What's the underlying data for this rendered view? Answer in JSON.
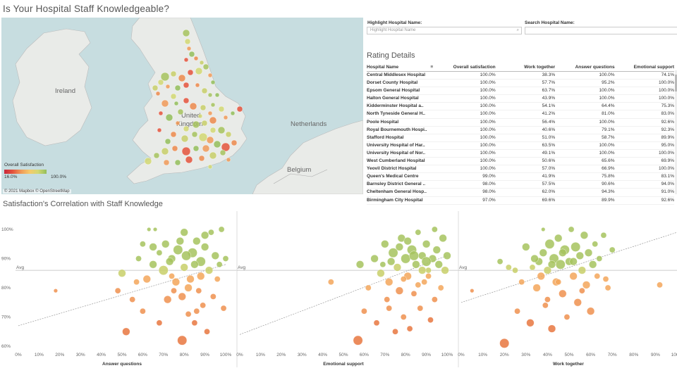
{
  "title": "Is Your Hospital Staff Knowledgeable?",
  "map": {
    "labels": {
      "ireland": "Ireland",
      "uk_1": "United",
      "uk_2": "Kingdom",
      "netherlands": "Netherlands",
      "belgium": "Belgium"
    },
    "legend": {
      "title": "Overall Satisfaction",
      "min": "16.0%",
      "max": "100.0%"
    },
    "attribution": "© 2021 Mapbox © OpenStreetMap"
  },
  "filters": {
    "highlight": {
      "label": "Highlight Hospital Name:",
      "placeholder": "Highlight Hospital Name"
    },
    "search": {
      "label": "Search Hospital Name:",
      "placeholder": ""
    }
  },
  "rating": {
    "title": "Rating Details",
    "headers": [
      "Hospital Name",
      "Overall satisfaction",
      "Work together",
      "Answer questions",
      "Emotional support"
    ],
    "rows": [
      [
        "Central Middlesex Hospital",
        "100.0%",
        "38.3%",
        "100.0%",
        "74.1%"
      ],
      [
        "Dorset County Hospital",
        "100.0%",
        "57.7%",
        "95.2%",
        "100.0%"
      ],
      [
        "Epsom General Hospital",
        "100.0%",
        "63.7%",
        "100.0%",
        "100.0%"
      ],
      [
        "Halton General Hospital",
        "100.0%",
        "43.9%",
        "100.0%",
        "100.0%"
      ],
      [
        "Kidderminster Hospital a..",
        "100.0%",
        "54.1%",
        "64.4%",
        "75.3%"
      ],
      [
        "North Tyneside General H..",
        "100.0%",
        "41.2%",
        "81.0%",
        "83.0%"
      ],
      [
        "Poole Hospital",
        "100.0%",
        "56.4%",
        "100.0%",
        "92.6%"
      ],
      [
        "Royal Bournemouth Hospi..",
        "100.0%",
        "40.6%",
        "79.1%",
        "92.3%"
      ],
      [
        "Stafford Hospital",
        "100.0%",
        "51.0%",
        "58.7%",
        "89.9%"
      ],
      [
        "University Hospital of Har..",
        "100.0%",
        "63.5%",
        "100.0%",
        "95.0%"
      ],
      [
        "University Hospital of Nor..",
        "100.0%",
        "49.1%",
        "100.0%",
        "100.0%"
      ],
      [
        "West Cumberland Hospital",
        "100.0%",
        "50.6%",
        "65.6%",
        "69.9%"
      ],
      [
        "Yeovil District Hospital",
        "100.0%",
        "57.0%",
        "66.9%",
        "100.0%"
      ],
      [
        "Queen's Medical Centre",
        "99.0%",
        "41.9%",
        "75.8%",
        "83.1%"
      ],
      [
        "Barnsley District General ..",
        "98.0%",
        "57.5%",
        "90.6%",
        "94.0%"
      ],
      [
        "Cheltenham General Hosp..",
        "98.0%",
        "62.0%",
        "94.3%",
        "91.0%"
      ],
      [
        "Birmingham City Hospital",
        "97.0%",
        "69.6%",
        "89.9%",
        "92.6%"
      ]
    ]
  },
  "correlation": {
    "title": "Satisfaction's Correlation with Staff Knowledge"
  },
  "chart_data": [
    {
      "type": "scatter",
      "xlabel": "Answer questions",
      "ylabel": "",
      "xlim": [
        0,
        100
      ],
      "ylim": [
        60,
        100
      ],
      "xticks": [
        "0%",
        "10%",
        "20%",
        "30%",
        "40%",
        "50%",
        "60%",
        "70%",
        "80%",
        "90%",
        "100%"
      ],
      "yticks": [
        "60%",
        "70%",
        "80%",
        "90%",
        "100%"
      ],
      "avg_label": "Avg",
      "avg_y": 86,
      "trend": [
        [
          0,
          67
        ],
        [
          100,
          88
        ]
      ],
      "points": [
        [
          18,
          79,
          1
        ],
        [
          48,
          79,
          2
        ],
        [
          50,
          85,
          3
        ],
        [
          52,
          65,
          3
        ],
        [
          55,
          76,
          2
        ],
        [
          58,
          90,
          2
        ],
        [
          60,
          72,
          2
        ],
        [
          62,
          83,
          3
        ],
        [
          63,
          100,
          1
        ],
        [
          65,
          94,
          3
        ],
        [
          66,
          100,
          1
        ],
        [
          68,
          68,
          2
        ],
        [
          70,
          86,
          4
        ],
        [
          72,
          76,
          3
        ],
        [
          74,
          90,
          3
        ],
        [
          75,
          79,
          2
        ],
        [
          77,
          93,
          4
        ],
        [
          79,
          62,
          4
        ],
        [
          80,
          87,
          3
        ],
        [
          80,
          99,
          3
        ],
        [
          82,
          71,
          2
        ],
        [
          83,
          83,
          3
        ],
        [
          84,
          92,
          4
        ],
        [
          85,
          68,
          2
        ],
        [
          86,
          96,
          3
        ],
        [
          87,
          79,
          2
        ],
        [
          88,
          89,
          4
        ],
        [
          89,
          74,
          2
        ],
        [
          90,
          94,
          3
        ],
        [
          91,
          65,
          2
        ],
        [
          92,
          86,
          3
        ],
        [
          93,
          99,
          2
        ],
        [
          94,
          77,
          2
        ],
        [
          95,
          91,
          3
        ],
        [
          96,
          83,
          2
        ],
        [
          97,
          88,
          2
        ],
        [
          98,
          100,
          2
        ],
        [
          99,
          73,
          2
        ],
        [
          100,
          90,
          2
        ],
        [
          76,
          82,
          3
        ],
        [
          71,
          95,
          3
        ],
        [
          73,
          89,
          3
        ],
        [
          78,
          96,
          3
        ],
        [
          81,
          91,
          4
        ],
        [
          85,
          88,
          3
        ],
        [
          88,
          84,
          3
        ],
        [
          90,
          98,
          3
        ],
        [
          65,
          88,
          3
        ],
        [
          68,
          92,
          2
        ],
        [
          74,
          84,
          2
        ],
        [
          60,
          95,
          2
        ],
        [
          57,
          82,
          2
        ],
        [
          82,
          80,
          3
        ],
        [
          86,
          72,
          2
        ],
        [
          79,
          77,
          3
        ]
      ]
    },
    {
      "type": "scatter",
      "xlabel": "Emotional support",
      "ylabel": "",
      "xlim": [
        0,
        100
      ],
      "ylim": [
        60,
        100
      ],
      "xticks": [
        "0%",
        "10%",
        "20%",
        "30%",
        "40%",
        "50%",
        "60%",
        "70%",
        "80%",
        "90%",
        "100%"
      ],
      "yticks": [],
      "avg_label": "Avg",
      "avg_y": 86,
      "trend": [
        [
          0,
          64
        ],
        [
          100,
          91
        ]
      ],
      "points": [
        [
          44,
          82,
          2
        ],
        [
          57,
          62,
          4
        ],
        [
          58,
          88,
          3
        ],
        [
          60,
          72,
          2
        ],
        [
          62,
          80,
          2
        ],
        [
          65,
          90,
          3
        ],
        [
          66,
          68,
          2
        ],
        [
          68,
          85,
          3
        ],
        [
          70,
          95,
          3
        ],
        [
          71,
          76,
          2
        ],
        [
          72,
          82,
          3
        ],
        [
          74,
          92,
          4
        ],
        [
          75,
          65,
          2
        ],
        [
          76,
          87,
          3
        ],
        [
          77,
          79,
          3
        ],
        [
          78,
          97,
          3
        ],
        [
          79,
          70,
          2
        ],
        [
          80,
          90,
          4
        ],
        [
          81,
          84,
          3
        ],
        [
          82,
          66,
          2
        ],
        [
          83,
          93,
          4
        ],
        [
          84,
          78,
          2
        ],
        [
          85,
          88,
          3
        ],
        [
          86,
          99,
          2
        ],
        [
          87,
          73,
          2
        ],
        [
          88,
          91,
          3
        ],
        [
          89,
          82,
          2
        ],
        [
          90,
          95,
          3
        ],
        [
          91,
          86,
          2
        ],
        [
          92,
          69,
          2
        ],
        [
          93,
          90,
          3
        ],
        [
          94,
          76,
          2
        ],
        [
          95,
          93,
          3
        ],
        [
          96,
          88,
          3
        ],
        [
          97,
          80,
          2
        ],
        [
          98,
          97,
          3
        ],
        [
          99,
          86,
          3
        ],
        [
          100,
          91,
          3
        ],
        [
          73,
          89,
          3
        ],
        [
          77,
          94,
          3
        ],
        [
          81,
          96,
          3
        ],
        [
          84,
          91,
          4
        ],
        [
          88,
          86,
          3
        ],
        [
          90,
          89,
          4
        ],
        [
          69,
          88,
          2
        ],
        [
          72,
          73,
          2
        ],
        [
          79,
          83,
          2
        ],
        [
          86,
          81,
          2
        ],
        [
          91,
          84,
          2
        ],
        [
          94,
          100,
          2
        ]
      ]
    },
    {
      "type": "scatter",
      "xlabel": "Work together",
      "ylabel": "",
      "xlim": [
        0,
        100
      ],
      "ylim": [
        60,
        100
      ],
      "xticks": [
        "0%",
        "10%",
        "20%",
        "30%",
        "40%",
        "50%",
        "60%",
        "70%",
        "80%",
        "90%",
        "100%"
      ],
      "yticks": [],
      "avg_label": "Avg",
      "avg_y": 86,
      "trend": [
        [
          0,
          75
        ],
        [
          100,
          99
        ]
      ],
      "points": [
        [
          5,
          79,
          1
        ],
        [
          18,
          89,
          2
        ],
        [
          20,
          61,
          4
        ],
        [
          22,
          87,
          2
        ],
        [
          25,
          86,
          2
        ],
        [
          26,
          72,
          2
        ],
        [
          28,
          82,
          2
        ],
        [
          30,
          94,
          3
        ],
        [
          32,
          68,
          3
        ],
        [
          33,
          87,
          2
        ],
        [
          35,
          80,
          3
        ],
        [
          36,
          89,
          3
        ],
        [
          38,
          92,
          3
        ],
        [
          38,
          100,
          1
        ],
        [
          39,
          74,
          2
        ],
        [
          40,
          86,
          3
        ],
        [
          41,
          95,
          4
        ],
        [
          42,
          66,
          3
        ],
        [
          43,
          90,
          4
        ],
        [
          44,
          82,
          3
        ],
        [
          45,
          97,
          3
        ],
        [
          46,
          88,
          4
        ],
        [
          47,
          78,
          3
        ],
        [
          48,
          93,
          4
        ],
        [
          49,
          70,
          2
        ],
        [
          50,
          89,
          3
        ],
        [
          51,
          100,
          2
        ],
        [
          52,
          84,
          3
        ],
        [
          53,
          94,
          4
        ],
        [
          54,
          75,
          3
        ],
        [
          55,
          91,
          3
        ],
        [
          56,
          86,
          3
        ],
        [
          57,
          98,
          3
        ],
        [
          58,
          81,
          3
        ],
        [
          59,
          92,
          3
        ],
        [
          60,
          72,
          3
        ],
        [
          61,
          88,
          3
        ],
        [
          62,
          95,
          2
        ],
        [
          63,
          84,
          2
        ],
        [
          64,
          90,
          2
        ],
        [
          66,
          98,
          2
        ],
        [
          67,
          83,
          2
        ],
        [
          68,
          80,
          2
        ],
        [
          70,
          93,
          2
        ],
        [
          92,
          81,
          2
        ],
        [
          34,
          90,
          3
        ],
        [
          37,
          84,
          3
        ],
        [
          42,
          88,
          3
        ],
        [
          47,
          92,
          3
        ],
        [
          52,
          89,
          3
        ],
        [
          45,
          82,
          2
        ],
        [
          56,
          79,
          2
        ],
        [
          40,
          76,
          2
        ]
      ]
    }
  ]
}
